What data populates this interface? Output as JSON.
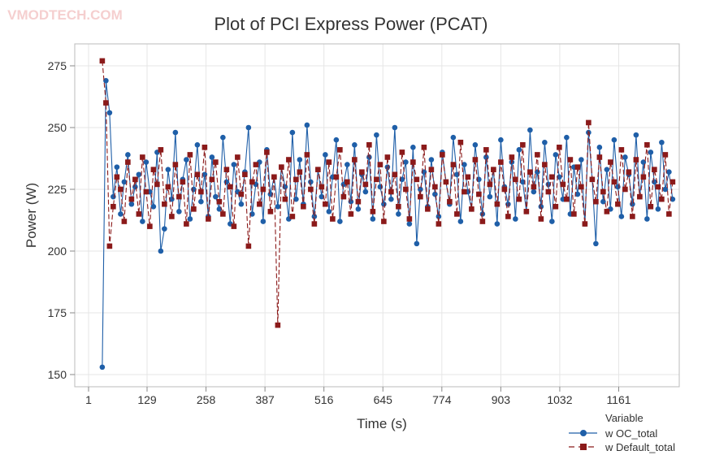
{
  "watermark": "VMODTECH.COM",
  "chart_data": {
    "type": "line",
    "title": "Plot of PCI Express Power (PCAT)",
    "xlabel": "Time (s)",
    "ylabel": "Power (W)",
    "xlim": [
      -30,
      1330
    ],
    "ylim": [
      141,
      285
    ],
    "x_ticks": [
      1,
      129,
      258,
      387,
      516,
      645,
      774,
      903,
      1032,
      1161
    ],
    "y_ticks": [
      150,
      175,
      200,
      225,
      250,
      275
    ],
    "grid": true,
    "legend": {
      "title": "Variable",
      "placement": "bottom-right"
    },
    "x": [
      31,
      39,
      47,
      55,
      63,
      71,
      79,
      87,
      95,
      103,
      111,
      119,
      127,
      135,
      143,
      151,
      159,
      167,
      175,
      183,
      191,
      199,
      207,
      215,
      223,
      231,
      239,
      247,
      255,
      263,
      271,
      279,
      287,
      295,
      303,
      311,
      319,
      327,
      335,
      343,
      351,
      359,
      367,
      375,
      383,
      391,
      399,
      407,
      415,
      423,
      431,
      439,
      447,
      455,
      463,
      471,
      479,
      487,
      495,
      503,
      511,
      519,
      527,
      535,
      543,
      551,
      559,
      567,
      575,
      583,
      591,
      599,
      607,
      615,
      623,
      631,
      639,
      647,
      655,
      663,
      671,
      679,
      687,
      695,
      703,
      711,
      719,
      727,
      735,
      743,
      751,
      759,
      767,
      775,
      783,
      791,
      799,
      807,
      815,
      823,
      831,
      839,
      847,
      855,
      863,
      871,
      879,
      887,
      895,
      903,
      911,
      919,
      927,
      935,
      943,
      951,
      959,
      967,
      975,
      983,
      991,
      999,
      1007,
      1015,
      1023,
      1031,
      1039,
      1047,
      1055,
      1063,
      1071,
      1079,
      1087,
      1095,
      1103,
      1111,
      1119,
      1127,
      1135,
      1143,
      1151,
      1159,
      1167,
      1175,
      1183,
      1191,
      1199,
      1207,
      1215,
      1223,
      1231,
      1239,
      1247,
      1255,
      1263,
      1271,
      1279
    ],
    "series": [
      {
        "name": "w OC_total",
        "color": "#1f5fa8",
        "marker": "circle",
        "line": "solid",
        "values": [
          153,
          269,
          256,
          222,
          234,
          215,
          228,
          239,
          219,
          226,
          231,
          212,
          236,
          224,
          218,
          240,
          200,
          209,
          233,
          221,
          248,
          216,
          229,
          237,
          213,
          225,
          243,
          220,
          231,
          214,
          238,
          222,
          217,
          246,
          228,
          211,
          235,
          224,
          219,
          232,
          250,
          215,
          227,
          236,
          212,
          241,
          223,
          230,
          218,
          234,
          226,
          213,
          248,
          221,
          237,
          219,
          251,
          228,
          214,
          233,
          222,
          239,
          216,
          230,
          245,
          212,
          227,
          235,
          220,
          243,
          217,
          231,
          224,
          238,
          213,
          247,
          226,
          219,
          234,
          221,
          250,
          215,
          229,
          236,
          211,
          242,
          203,
          225,
          232,
          218,
          237,
          223,
          214,
          240,
          228,
          219,
          246,
          231,
          212,
          235,
          224,
          217,
          243,
          229,
          215,
          238,
          222,
          233,
          211,
          245,
          226,
          219,
          236,
          213,
          241,
          228,
          216,
          249,
          224,
          232,
          218,
          244,
          227,
          212,
          239,
          230,
          221,
          246,
          215,
          234,
          223,
          237,
          211,
          248,
          229,
          203,
          242,
          220,
          233,
          217,
          245,
          226,
          214,
          238,
          231,
          219,
          247,
          222,
          236,
          213,
          240,
          228,
          217,
          244,
          225,
          232,
          221
        ]
      },
      {
        "name": "w Default_total",
        "color": "#8b1a1a",
        "marker": "square",
        "line": "dashed",
        "values": [
          277,
          260,
          202,
          218,
          230,
          225,
          212,
          236,
          221,
          229,
          215,
          238,
          224,
          210,
          233,
          227,
          241,
          219,
          226,
          214,
          235,
          222,
          228,
          211,
          239,
          217,
          231,
          224,
          242,
          213,
          229,
          236,
          220,
          215,
          233,
          226,
          210,
          238,
          223,
          231,
          202,
          228,
          235,
          219,
          225,
          240,
          216,
          230,
          170,
          234,
          221,
          237,
          214,
          229,
          232,
          218,
          239,
          225,
          211,
          233,
          226,
          219,
          236,
          213,
          230,
          241,
          222,
          228,
          215,
          237,
          220,
          232,
          227,
          243,
          216,
          229,
          235,
          212,
          238,
          224,
          231,
          218,
          240,
          225,
          213,
          236,
          229,
          222,
          242,
          217,
          233,
          226,
          211,
          239,
          228,
          220,
          235,
          215,
          244,
          224,
          230,
          217,
          237,
          223,
          212,
          241,
          227,
          233,
          219,
          236,
          225,
          214,
          238,
          229,
          221,
          243,
          216,
          232,
          226,
          239,
          213,
          235,
          224,
          230,
          218,
          242,
          227,
          221,
          237,
          215,
          234,
          226,
          211,
          252,
          229,
          220,
          238,
          224,
          216,
          236,
          228,
          219,
          241,
          225,
          232,
          214,
          237,
          222,
          230,
          243,
          218,
          233,
          226,
          221,
          239,
          215,
          228
        ]
      }
    ]
  }
}
